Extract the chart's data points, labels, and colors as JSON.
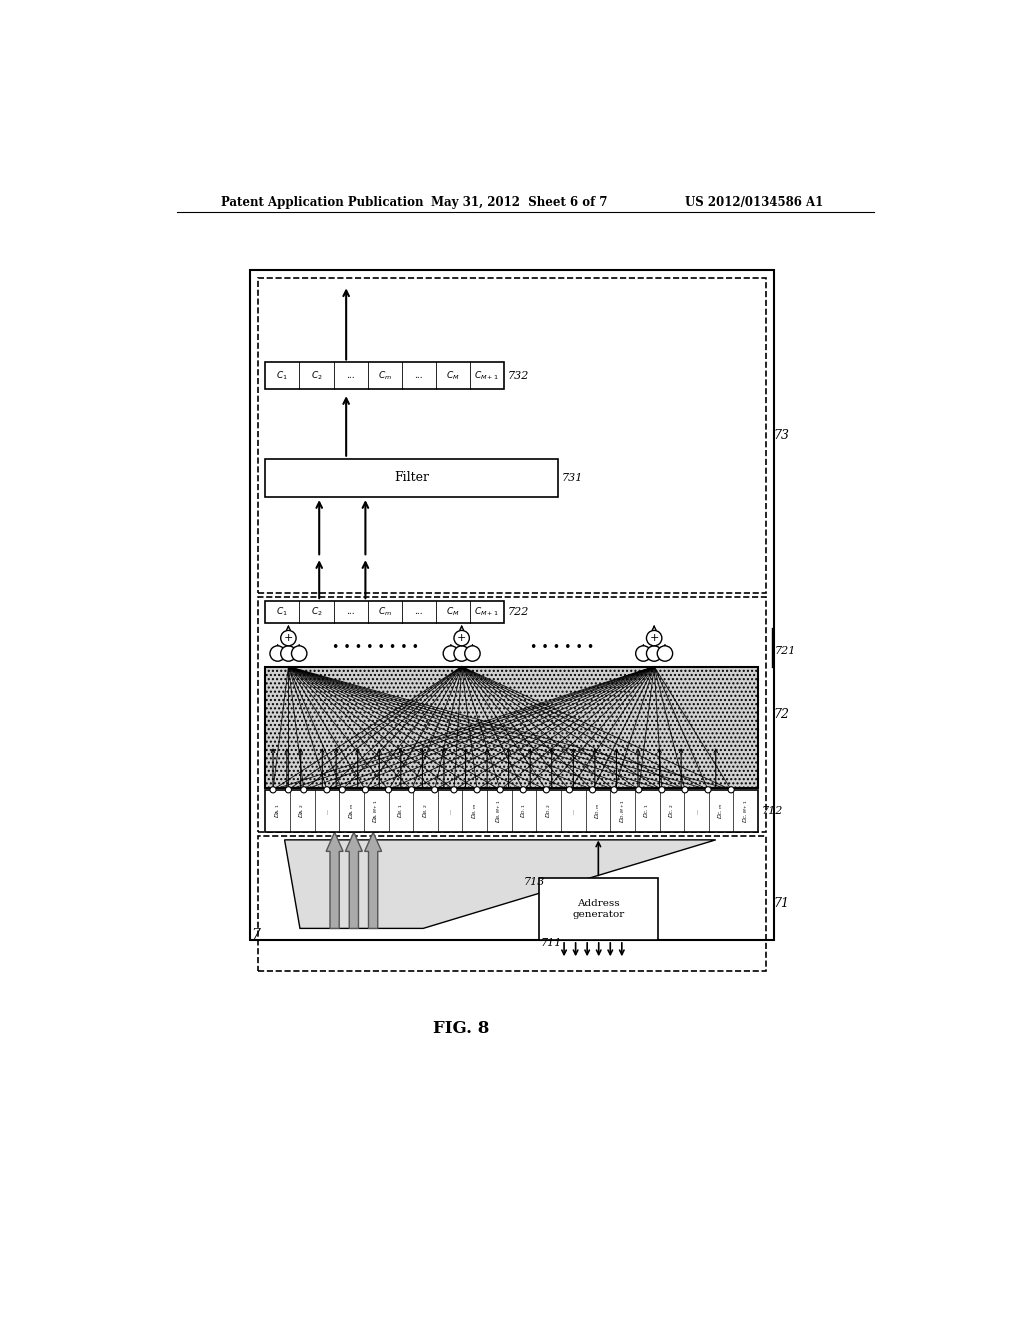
{
  "title_left": "Patent Application Publication",
  "title_mid": "May 31, 2012  Sheet 6 of 7",
  "title_right": "US 2012/0134586 A1",
  "fig_label": "FIG. 8",
  "bg_color": "#ffffff"
}
